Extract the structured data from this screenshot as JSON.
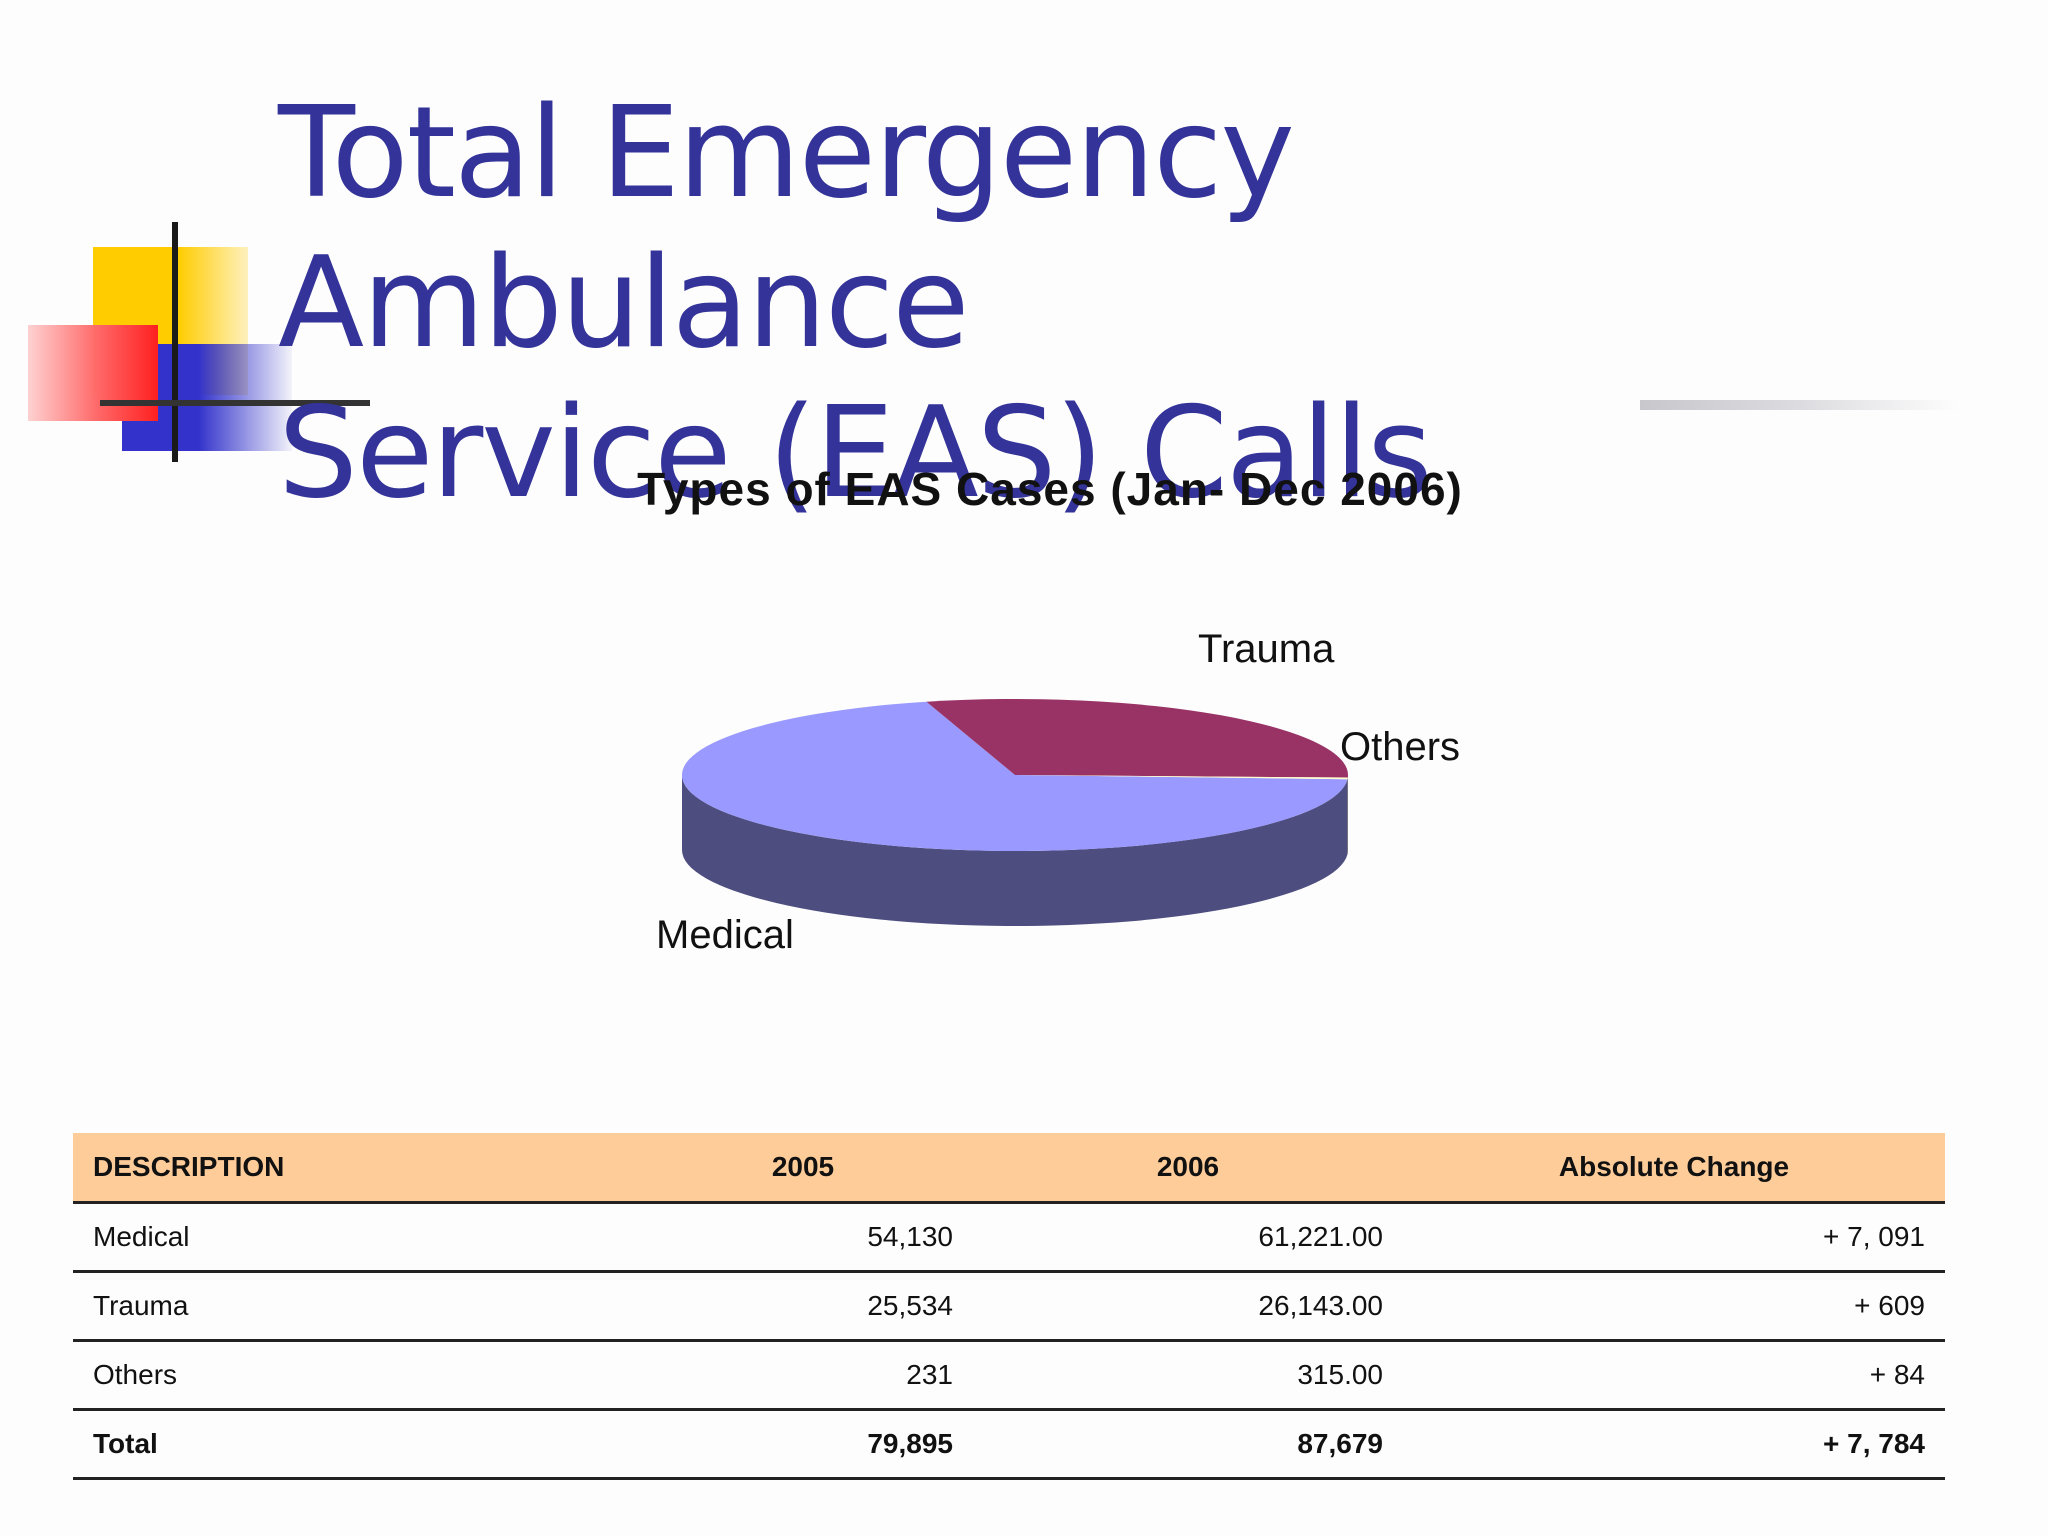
{
  "slide": {
    "title_line1": "Total Emergency Ambulance",
    "title_line2": "Service (EAS) Calls",
    "title_color": "#333399"
  },
  "chart_data": {
    "type": "pie",
    "title": "Types of EAS Cases (Jan- Dec 2006)",
    "style": "3d",
    "slices": [
      {
        "label": "Medical",
        "value": 61221,
        "color": "#9999ff"
      },
      {
        "label": "Trauma",
        "value": 26143,
        "color": "#993366"
      },
      {
        "label": "Others",
        "value": 315,
        "color": "#ffffcc"
      }
    ]
  },
  "table": {
    "headers": [
      "DESCRIPTION",
      "2005",
      "2006",
      "Absolute Change"
    ],
    "header_bg": "#fecc99",
    "rows": [
      [
        "Medical",
        "54,130",
        "61,221.00",
        "+ 7, 091"
      ],
      [
        "Trauma",
        "25,534",
        "26,143.00",
        "+ 609"
      ],
      [
        "Others",
        "231",
        "315.00",
        "+ 84"
      ]
    ],
    "total": [
      "Total",
      "79,895",
      "87,679",
      "+ 7, 784"
    ]
  }
}
